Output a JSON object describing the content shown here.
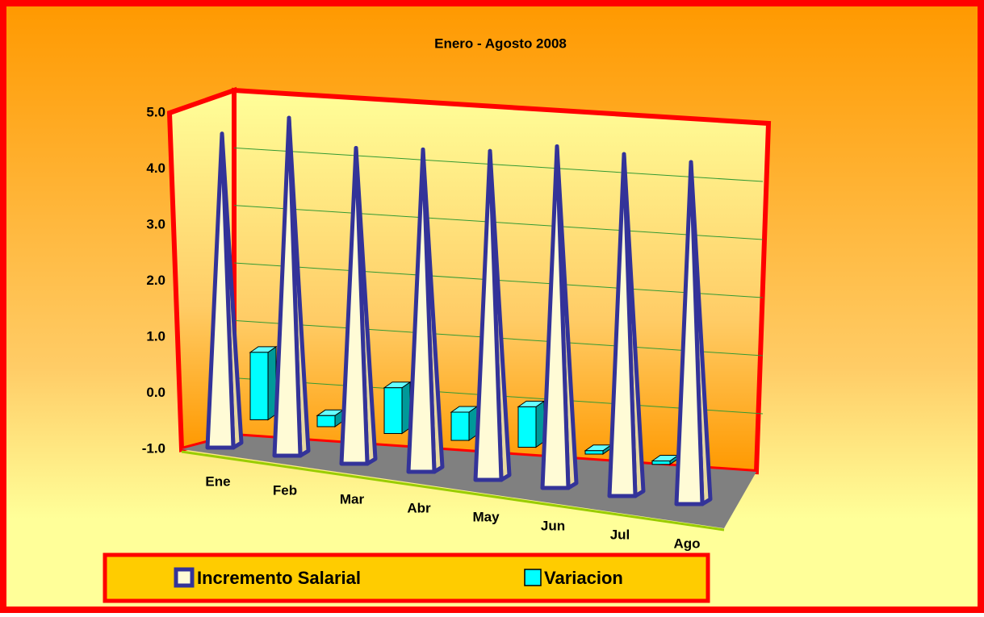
{
  "chart_data": {
    "type": "bar3d",
    "title": "Enero - Agosto 2008",
    "categories": [
      "Ene",
      "Feb",
      "Mar",
      "Abr",
      "May",
      "Jun",
      "Jul",
      "Ago"
    ],
    "series": [
      {
        "name": "Incremento Salarial",
        "color": "#fffbd6",
        "values": [
          4.6,
          4.9,
          4.4,
          4.4,
          4.4,
          4.5,
          4.4,
          4.3
        ]
      },
      {
        "name": "Variacion",
        "color": "#00ffff",
        "values": [
          0.7,
          -0.3,
          0.3,
          0.0,
          0.2,
          -0.4,
          -0.5,
          null
        ]
      }
    ],
    "ylim": [
      -1,
      5
    ],
    "yticks": [
      {
        "value": -1,
        "label": "-1.0"
      },
      {
        "value": 0,
        "label": "0.0"
      },
      {
        "value": 1,
        "label": "1.0"
      },
      {
        "value": 2,
        "label": "2.0"
      },
      {
        "value": 3,
        "label": "3.0"
      },
      {
        "value": 4,
        "label": "4.0"
      },
      {
        "value": 5,
        "label": "5.0"
      }
    ],
    "grid": true
  }
}
